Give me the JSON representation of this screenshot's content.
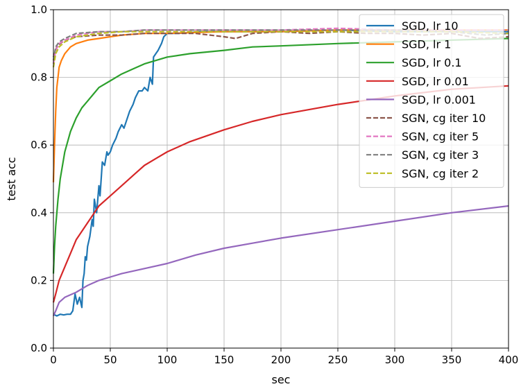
{
  "chart_data": {
    "type": "line",
    "title": "",
    "xlabel": "sec",
    "ylabel": "test acc",
    "xlim": [
      0,
      400
    ],
    "ylim": [
      0.0,
      1.0
    ],
    "xticks": [
      "0",
      "50",
      "100",
      "150",
      "200",
      "250",
      "300",
      "350",
      "400"
    ],
    "yticks": [
      "0.0",
      "0.2",
      "0.4",
      "0.6",
      "0.8",
      "1.0"
    ],
    "grid": true,
    "legend_position": "top-right",
    "series": [
      {
        "name": "SGD, lr 10",
        "color": "#1f77b4",
        "style": "solid",
        "x": [
          0,
          3,
          6,
          9,
          12,
          15,
          17,
          19,
          21,
          23,
          25,
          26,
          27,
          28,
          29,
          30,
          32,
          34,
          35,
          36,
          38,
          40,
          41,
          43,
          45,
          47,
          48,
          50,
          52,
          55,
          57,
          60,
          62,
          65,
          67,
          70,
          72,
          75,
          78,
          80,
          83,
          85,
          87,
          88,
          90,
          92,
          95,
          97,
          100,
          110,
          130,
          150,
          200,
          250,
          300,
          350,
          400
        ],
        "y": [
          0.1,
          0.095,
          0.1,
          0.098,
          0.1,
          0.1,
          0.11,
          0.16,
          0.13,
          0.15,
          0.12,
          0.2,
          0.22,
          0.27,
          0.26,
          0.3,
          0.33,
          0.38,
          0.36,
          0.44,
          0.4,
          0.48,
          0.45,
          0.55,
          0.54,
          0.58,
          0.57,
          0.58,
          0.6,
          0.62,
          0.64,
          0.66,
          0.65,
          0.68,
          0.7,
          0.72,
          0.74,
          0.76,
          0.76,
          0.77,
          0.76,
          0.8,
          0.78,
          0.86,
          0.87,
          0.88,
          0.9,
          0.92,
          0.93,
          0.93,
          0.935,
          0.935,
          0.935,
          0.94,
          0.935,
          0.935,
          0.935
        ]
      },
      {
        "name": "SGD, lr 1",
        "color": "#ff7f0e",
        "style": "solid",
        "x": [
          0,
          1,
          2,
          3,
          4,
          5,
          7,
          10,
          15,
          20,
          30,
          40,
          50,
          60,
          80,
          100,
          150,
          200,
          250,
          300,
          350,
          400
        ],
        "y": [
          0.49,
          0.6,
          0.7,
          0.77,
          0.8,
          0.83,
          0.85,
          0.87,
          0.89,
          0.9,
          0.91,
          0.915,
          0.92,
          0.925,
          0.93,
          0.93,
          0.935,
          0.935,
          0.94,
          0.94,
          0.94,
          0.94
        ]
      },
      {
        "name": "SGD, lr 0.1",
        "color": "#2ca02c",
        "style": "solid",
        "x": [
          0,
          1,
          2,
          4,
          6,
          8,
          10,
          15,
          20,
          25,
          30,
          35,
          40,
          50,
          60,
          70,
          80,
          90,
          100,
          120,
          150,
          175,
          200,
          250,
          300,
          350,
          400
        ],
        "y": [
          0.22,
          0.3,
          0.36,
          0.44,
          0.5,
          0.54,
          0.58,
          0.64,
          0.68,
          0.71,
          0.73,
          0.75,
          0.77,
          0.79,
          0.81,
          0.825,
          0.84,
          0.85,
          0.86,
          0.87,
          0.88,
          0.89,
          0.893,
          0.9,
          0.905,
          0.91,
          0.915
        ]
      },
      {
        "name": "SGD, lr 0.01",
        "color": "#d62728",
        "style": "solid",
        "x": [
          0,
          2,
          5,
          10,
          15,
          20,
          30,
          40,
          50,
          60,
          70,
          80,
          90,
          100,
          120,
          150,
          175,
          200,
          250,
          300,
          350,
          400
        ],
        "y": [
          0.135,
          0.16,
          0.2,
          0.24,
          0.28,
          0.32,
          0.37,
          0.42,
          0.45,
          0.48,
          0.51,
          0.54,
          0.56,
          0.58,
          0.61,
          0.645,
          0.67,
          0.69,
          0.72,
          0.745,
          0.765,
          0.775
        ]
      },
      {
        "name": "SGD, lr 0.001",
        "color": "#9467bd",
        "style": "solid",
        "x": [
          0,
          2,
          5,
          10,
          20,
          30,
          40,
          50,
          60,
          80,
          100,
          125,
          150,
          175,
          200,
          250,
          300,
          350,
          400
        ],
        "y": [
          0.095,
          0.11,
          0.135,
          0.15,
          0.165,
          0.185,
          0.2,
          0.21,
          0.22,
          0.235,
          0.25,
          0.275,
          0.295,
          0.31,
          0.325,
          0.35,
          0.375,
          0.4,
          0.42
        ]
      },
      {
        "name": "SGN, cg iter 10",
        "color": "#8c564b",
        "style": "dashed",
        "x": [
          0,
          3,
          6,
          10,
          20,
          40,
          60,
          80,
          100,
          125,
          150,
          160,
          175,
          200,
          225,
          250,
          275,
          300,
          325,
          350,
          375,
          400
        ],
        "y": [
          0.86,
          0.89,
          0.9,
          0.91,
          0.92,
          0.925,
          0.925,
          0.93,
          0.93,
          0.93,
          0.92,
          0.915,
          0.93,
          0.935,
          0.93,
          0.935,
          0.93,
          0.93,
          0.925,
          0.93,
          0.915,
          0.92
        ]
      },
      {
        "name": "SGN, cg iter 5",
        "color": "#e377c2",
        "style": "dashed",
        "x": [
          0,
          2,
          5,
          10,
          20,
          40,
          60,
          80,
          100,
          150,
          200,
          250,
          300,
          350,
          400
        ],
        "y": [
          0.84,
          0.88,
          0.9,
          0.91,
          0.925,
          0.935,
          0.935,
          0.94,
          0.94,
          0.94,
          0.94,
          0.945,
          0.94,
          0.94,
          0.94
        ]
      },
      {
        "name": "SGN, cg iter 3",
        "color": "#7f7f7f",
        "style": "dashed",
        "x": [
          0,
          2,
          5,
          10,
          20,
          40,
          60,
          80,
          100,
          150,
          200,
          250,
          300,
          350,
          380,
          400
        ],
        "y": [
          0.85,
          0.89,
          0.905,
          0.915,
          0.93,
          0.935,
          0.935,
          0.94,
          0.94,
          0.94,
          0.94,
          0.94,
          0.94,
          0.935,
          0.925,
          0.93
        ]
      },
      {
        "name": "SGN, cg iter 2",
        "color": "#bcbd22",
        "style": "dashed",
        "x": [
          0,
          2,
          5,
          10,
          20,
          40,
          60,
          80,
          100,
          150,
          200,
          250,
          300,
          350,
          400
        ],
        "y": [
          0.83,
          0.87,
          0.89,
          0.905,
          0.92,
          0.93,
          0.935,
          0.935,
          0.935,
          0.935,
          0.935,
          0.935,
          0.935,
          0.935,
          0.93
        ]
      }
    ]
  }
}
